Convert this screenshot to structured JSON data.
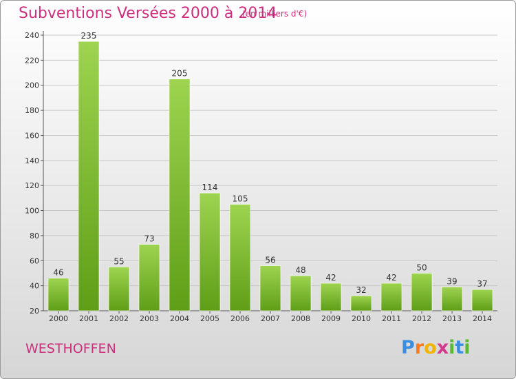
{
  "header": {
    "title": "Subventions Versées 2000 à 2014",
    "unit": "(en milliers d'€)"
  },
  "footer": {
    "town": "WESTHOFFEN",
    "logo_parts": [
      "P",
      "r",
      "o",
      "x",
      "i",
      "t",
      "i"
    ]
  },
  "colors": {
    "title": "#cc2f7d",
    "bar_top": "#9ed44f",
    "bar_bottom": "#5f9e16",
    "grid": "#c8c8c8"
  },
  "chart_data": {
    "type": "bar",
    "title": "Subventions Versées 2000 à 2014",
    "subtitle": "(en milliers d'€)",
    "xlabel": "",
    "ylabel": "",
    "categories": [
      "2000",
      "2001",
      "2002",
      "2003",
      "2004",
      "2005",
      "2006",
      "2007",
      "2008",
      "2009",
      "2010",
      "2011",
      "2012",
      "2013",
      "2014"
    ],
    "values": [
      46,
      235,
      55,
      73,
      205,
      114,
      105,
      56,
      48,
      42,
      32,
      42,
      50,
      39,
      37
    ],
    "ylim": [
      20,
      240
    ],
    "yticks": [
      20,
      40,
      60,
      80,
      100,
      120,
      140,
      160,
      180,
      200,
      220,
      240
    ],
    "grid": true,
    "data_labels": true
  }
}
